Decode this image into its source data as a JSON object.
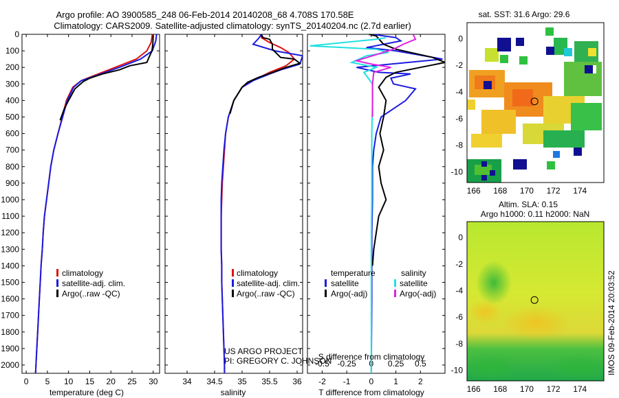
{
  "header": {
    "title_line1": "Argo profile: AO 3900585_248 06-Feb-2014 20140208_68 4.708S 170.58E",
    "title_line2": "Climatology: CARS2009. Satellite-adjusted climatology: synTS_20140204.nc (2.7d earlier)"
  },
  "colors": {
    "climatology": "#e01010",
    "satellite": "#1a1ae0",
    "argo": "#000000",
    "sal_satellite": "#20e0e0",
    "sal_argo": "#e020e0"
  },
  "chart_data": [
    {
      "id": "temperature",
      "type": "line",
      "xlabel": "temperature (deg C)",
      "xlim": [
        -1,
        31.5
      ],
      "xticks": [
        0,
        5,
        10,
        15,
        20,
        25,
        30
      ],
      "xtick_labels": [
        "0",
        "5",
        "10",
        "15",
        "20",
        "25",
        "30"
      ],
      "ylim": [
        0,
        2050
      ],
      "yticks": [
        0,
        100,
        200,
        300,
        400,
        500,
        600,
        700,
        800,
        900,
        1000,
        1100,
        1200,
        1300,
        1400,
        1500,
        1600,
        1700,
        1800,
        1900,
        2000
      ],
      "ytick_labels": [
        "0",
        "100",
        "200",
        "300",
        "400",
        "500",
        "600",
        "700",
        "800",
        "900",
        "1000",
        "1100",
        "1200",
        "1300",
        "1400",
        "1500",
        "1600",
        "1700",
        "1800",
        "1900",
        "2000"
      ],
      "legend": [
        "climatology",
        "satellite-adj. clim.",
        "Argo(..raw -QC)"
      ],
      "series": [
        {
          "name": "climatology",
          "color": "#e01010",
          "points": [
            [
              29.8,
              0
            ],
            [
              29.5,
              50
            ],
            [
              28.5,
              100
            ],
            [
              26,
              150
            ],
            [
              21,
              200
            ],
            [
              16,
              250
            ],
            [
              13,
              280
            ],
            [
              11,
              320
            ],
            [
              9.5,
              400
            ],
            [
              8.5,
              500
            ],
            [
              7.5,
              600
            ],
            [
              6.5,
              700
            ],
            [
              5.8,
              800
            ],
            [
              5.3,
              900
            ],
            [
              4.8,
              1000
            ],
            [
              4.3,
              1100
            ],
            [
              4,
              1200
            ],
            [
              3.8,
              1300
            ],
            [
              3.5,
              1400
            ],
            [
              3.3,
              1500
            ],
            [
              3.1,
              1600
            ],
            [
              2.9,
              1700
            ],
            [
              2.7,
              1800
            ],
            [
              2.5,
              1900
            ],
            [
              2.3,
              2000
            ],
            [
              2.2,
              2050
            ]
          ]
        },
        {
          "name": "satellite-adj. clim.",
          "color": "#1a1ae0",
          "points": [
            [
              30.8,
              0
            ],
            [
              30.6,
              40
            ],
            [
              29.8,
              100
            ],
            [
              27,
              150
            ],
            [
              22,
              200
            ],
            [
              16.5,
              250
            ],
            [
              13,
              280
            ],
            [
              11.2,
              320
            ],
            [
              9.7,
              400
            ],
            [
              8.6,
              500
            ],
            [
              7.5,
              600
            ],
            [
              6.5,
              700
            ],
            [
              5.8,
              800
            ],
            [
              5.3,
              900
            ],
            [
              4.8,
              1000
            ],
            [
              4.3,
              1100
            ],
            [
              4,
              1200
            ],
            [
              3.8,
              1300
            ],
            [
              3.5,
              1400
            ],
            [
              3.3,
              1500
            ],
            [
              3.1,
              1600
            ],
            [
              2.9,
              1700
            ],
            [
              2.7,
              1800
            ],
            [
              2.5,
              1900
            ],
            [
              2.3,
              2000
            ],
            [
              2.2,
              2050
            ]
          ]
        },
        {
          "name": "Argo(..raw -QC)",
          "color": "#000000",
          "points": [
            [
              30,
              5
            ],
            [
              29.9,
              60
            ],
            [
              29.7,
              100
            ],
            [
              29,
              140
            ],
            [
              28.5,
              170
            ],
            [
              24.5,
              190
            ],
            [
              22,
              215
            ],
            [
              18,
              240
            ],
            [
              15,
              265
            ],
            [
              13.5,
              285
            ],
            [
              11.5,
              330
            ],
            [
              10,
              400
            ],
            [
              9,
              450
            ],
            [
              8,
              520
            ]
          ]
        }
      ]
    },
    {
      "id": "salinity",
      "type": "line",
      "xlabel": "salinity",
      "xlim": [
        33.6,
        36.1
      ],
      "xticks": [
        34,
        34.5,
        35,
        35.5,
        36
      ],
      "xtick_labels": [
        "34",
        "34.5",
        "35",
        "35.5",
        "36"
      ],
      "ylim": [
        0,
        2050
      ],
      "legend": [
        "climatology",
        "satellite-adj. clim.",
        "Argo(..raw -QC)"
      ],
      "annotation_line1": "US ARGO PROJECT",
      "annotation_line2": "PI: GREGORY C. JOHNSON",
      "series": [
        {
          "name": "climatology",
          "color": "#e01010",
          "points": [
            [
              35.35,
              0
            ],
            [
              35.35,
              20
            ],
            [
              35.5,
              50
            ],
            [
              35.7,
              80
            ],
            [
              35.85,
              110
            ],
            [
              35.95,
              150
            ],
            [
              35.8,
              190
            ],
            [
              35.5,
              230
            ],
            [
              35.2,
              280
            ],
            [
              35,
              320
            ],
            [
              34.85,
              400
            ],
            [
              34.75,
              500
            ],
            [
              34.7,
              600
            ],
            [
              34.68,
              700
            ],
            [
              34.66,
              800
            ],
            [
              34.64,
              900
            ],
            [
              34.63,
              1000
            ],
            [
              34.62,
              1100
            ],
            [
              34.62,
              1200
            ],
            [
              34.62,
              1300
            ],
            [
              34.63,
              1400
            ],
            [
              34.63,
              1500
            ],
            [
              34.64,
              1600
            ],
            [
              34.65,
              1700
            ],
            [
              34.66,
              1800
            ],
            [
              34.67,
              1900
            ],
            [
              34.68,
              2000
            ],
            [
              34.68,
              2050
            ]
          ]
        },
        {
          "name": "satellite-adj. clim.",
          "color": "#1a1ae0",
          "points": [
            [
              35.35,
              0
            ],
            [
              35.3,
              25
            ],
            [
              35.2,
              60
            ],
            [
              35.6,
              100
            ],
            [
              36.1,
              130
            ],
            [
              36.05,
              180
            ],
            [
              35.7,
              215
            ],
            [
              35.5,
              240
            ],
            [
              35.2,
              280
            ],
            [
              35,
              320
            ],
            [
              34.85,
              400
            ],
            [
              34.75,
              500
            ],
            [
              34.7,
              600
            ],
            [
              34.67,
              700
            ],
            [
              34.65,
              800
            ],
            [
              34.63,
              900
            ],
            [
              34.62,
              1000
            ],
            [
              34.62,
              1100
            ],
            [
              34.62,
              1200
            ],
            [
              34.62,
              1300
            ],
            [
              34.63,
              1400
            ],
            [
              34.63,
              1500
            ],
            [
              34.64,
              1600
            ],
            [
              34.65,
              1700
            ],
            [
              34.66,
              1800
            ],
            [
              34.67,
              1900
            ],
            [
              34.68,
              2000
            ],
            [
              34.68,
              2050
            ]
          ]
        },
        {
          "name": "Argo(..raw -QC)",
          "color": "#000000",
          "points": [
            [
              35.35,
              0
            ],
            [
              35.38,
              20
            ],
            [
              35.5,
              30
            ],
            [
              35.55,
              60
            ],
            [
              35.55,
              90
            ],
            [
              35.7,
              140
            ],
            [
              35.95,
              150
            ],
            [
              36.05,
              175
            ],
            [
              35.8,
              200
            ],
            [
              35.6,
              225
            ],
            [
              35.3,
              260
            ],
            [
              35.1,
              290
            ],
            [
              35,
              320
            ],
            [
              34.85,
              400
            ],
            [
              34.78,
              480
            ]
          ]
        }
      ]
    },
    {
      "id": "difference",
      "type": "line",
      "xlabel": "T difference from climatology",
      "xlabel_top": "S difference from climatology",
      "xlim": [
        -2.6,
        3
      ],
      "xticks": [
        -2,
        -1,
        0,
        1,
        2
      ],
      "xtick_labels": [
        "-2",
        "-1",
        "0",
        "1",
        "2"
      ],
      "sticks": [
        -0.5,
        -0.25,
        0,
        0.25,
        0.5
      ],
      "stick_labels": [
        "-0.5",
        "-0.25",
        "0",
        "0.25",
        "0.5"
      ],
      "ylim": [
        0,
        2050
      ],
      "legend_title_left": "temperature",
      "legend_title_right": "salinity",
      "legend": [
        "satellite",
        "Argo(-adj)",
        "satellite",
        "Argo(-adj)"
      ],
      "series": [
        {
          "name": "T satellite",
          "color": "#1a1ae0",
          "points": [
            [
              0.05,
              0
            ],
            [
              1,
              20
            ],
            [
              1.2,
              40
            ],
            [
              0.5,
              60
            ],
            [
              -0.2,
              80
            ],
            [
              1,
              100
            ],
            [
              2.9,
              150
            ],
            [
              0.8,
              180
            ],
            [
              -0.6,
              200
            ],
            [
              0.3,
              230
            ],
            [
              1.6,
              240
            ],
            [
              0.8,
              265
            ],
            [
              0.9,
              300
            ],
            [
              1.8,
              330
            ],
            [
              1.4,
              400
            ],
            [
              0.4,
              500
            ],
            [
              0.2,
              600
            ],
            [
              0.1,
              700
            ],
            [
              0.05,
              800
            ],
            [
              0.05,
              1000
            ],
            [
              0.02,
              1200
            ],
            [
              0.02,
              1600
            ],
            [
              0,
              2000
            ],
            [
              0,
              2050
            ]
          ]
        },
        {
          "name": "T Argo(-adj)",
          "color": "#000000",
          "points": [
            [
              -0.1,
              0
            ],
            [
              0.2,
              10
            ],
            [
              0.5,
              60
            ],
            [
              1,
              90
            ],
            [
              2.5,
              140
            ],
            [
              3,
              170
            ],
            [
              2,
              200
            ],
            [
              1,
              230
            ],
            [
              0.6,
              260
            ],
            [
              0.3,
              320
            ],
            [
              0.6,
              400
            ],
            [
              0.5,
              500
            ],
            [
              0.35,
              600
            ],
            [
              0.5,
              700
            ],
            [
              0.3,
              800
            ],
            [
              0.4,
              900
            ],
            [
              0.6,
              1000
            ],
            [
              0.3,
              1100
            ],
            [
              0.2,
              1200
            ],
            [
              0.1,
              1300
            ],
            [
              0.05,
              1400
            ]
          ]
        },
        {
          "name": "S satellite",
          "color": "#20e0e0",
          "points": [
            [
              0.6,
              20
            ],
            [
              0.2,
              30
            ],
            [
              -2.5,
              70
            ],
            [
              0.2,
              90
            ],
            [
              0.7,
              110
            ],
            [
              -0.2,
              130
            ],
            [
              -0.8,
              170
            ],
            [
              0.2,
              200
            ],
            [
              -0.3,
              230
            ],
            [
              0.05,
              300
            ],
            [
              0.05,
              400
            ],
            [
              0.02,
              600
            ],
            [
              0.02,
              800
            ],
            [
              0.02,
              1000
            ],
            [
              0,
              1200
            ],
            [
              0,
              1600
            ],
            [
              0,
              2000
            ],
            [
              0,
              2050
            ]
          ]
        },
        {
          "name": "S Argo(-adj)",
          "color": "#e020e0",
          "points": [
            [
              1.7,
              0
            ],
            [
              1.8,
              30
            ],
            [
              1.3,
              60
            ],
            [
              0.9,
              90
            ],
            [
              -0.6,
              160
            ],
            [
              0,
              180
            ],
            [
              0.8,
              200
            ],
            [
              0.1,
              230
            ],
            [
              0.05,
              300
            ],
            [
              0.05,
              400
            ],
            [
              0.05,
              500
            ]
          ]
        }
      ]
    }
  ],
  "map_sst": {
    "title": "sat. SST: 31.6 Argo: 29.6",
    "xticks": [
      166,
      168,
      170,
      172,
      174
    ],
    "xtick_labels": [
      "166",
      "168",
      "170",
      "172",
      "174"
    ],
    "yticks": [
      0,
      -2,
      -4,
      -6,
      -8,
      -10
    ],
    "ytick_labels": [
      "0",
      "-2",
      "-4",
      "-6",
      "-8",
      "-10"
    ],
    "xlim": [
      165.5,
      175.8
    ],
    "ylim": [
      -10.8,
      1.2
    ],
    "float_position": [
      170.58,
      -4.708
    ]
  },
  "map_sla": {
    "title_line1": "Altim. SLA: 0.15",
    "title_line2": "Argo h1000: 0.11 h2000: NaN",
    "xticks": [
      166,
      168,
      170,
      172,
      174
    ],
    "xtick_labels": [
      "166",
      "168",
      "170",
      "172",
      "174"
    ],
    "yticks": [
      0,
      -2,
      -4,
      -6,
      -8,
      -10
    ],
    "ytick_labels": [
      "0",
      "-2",
      "-4",
      "-6",
      "-8",
      "-10"
    ],
    "xlim": [
      165.5,
      175.8
    ],
    "ylim": [
      -10.8,
      1.2
    ],
    "float_position": [
      170.58,
      -4.708
    ]
  },
  "footer": {
    "timestamp": "IMOS 09-Feb-2014 20:03:52"
  }
}
